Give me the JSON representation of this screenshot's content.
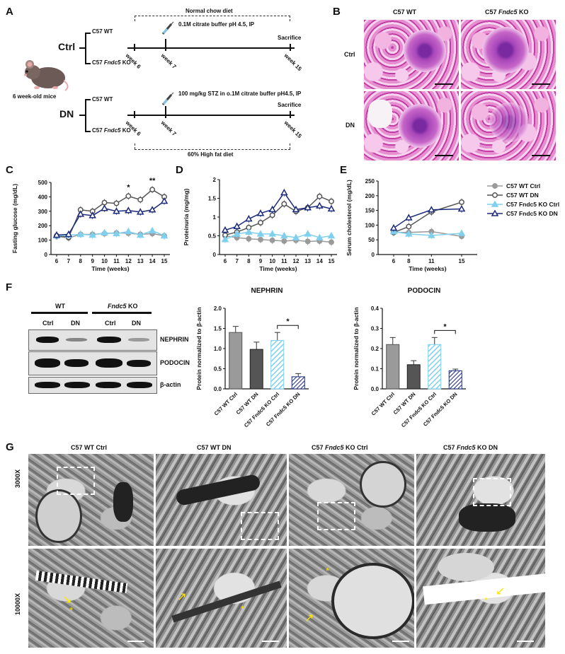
{
  "panels": {
    "A": {
      "label": "A",
      "mouse_label": "6 week-old mice",
      "ctrl": {
        "group": "Ctrl",
        "strain_wt": "C57 WT",
        "strain_ko_prefix": "C57 ",
        "strain_ko_gene": "Fndc5",
        "strain_ko_suffix": " KO",
        "diet": "Normal chow diet",
        "injection": "0.1M citrate buffer pH 4.5, IP",
        "sacrifice": "Sacrifice",
        "week_start": "week 6",
        "week_inject": "week 7",
        "week_end": "week 15"
      },
      "dn": {
        "group": "DN",
        "strain_wt": "C57 WT",
        "strain_ko_prefix": "C57 ",
        "strain_ko_gene": "Fndc5",
        "strain_ko_suffix": " KO",
        "diet": "60% High fat diet",
        "injection": "100 mg/kg STZ in o.1M citrate buffer pH4.5, IP",
        "sacrifice": "Sacrifice",
        "week_start": "week 6",
        "week_inject": "week 7",
        "week_end": "week 15"
      }
    },
    "B": {
      "label": "B",
      "col1": "C57 WT",
      "col2_prefix": "C57 ",
      "col2_gene": "Fndc5",
      "col2_suffix": " KO",
      "row1": "Ctrl",
      "row2": "DN"
    },
    "C": {
      "label": "C"
    },
    "D": {
      "label": "D"
    },
    "E": {
      "label": "E"
    },
    "F": {
      "label": "F",
      "wb_wt": "WT",
      "wb_ko_gene": "Fndc5",
      "wb_ko_suffix": " KO",
      "lanes": [
        "Ctrl",
        "DN",
        "Ctrl",
        "DN"
      ],
      "rows": [
        "NEPHRIN",
        "PODOCIN",
        "β-actin"
      ]
    },
    "G": {
      "label": "G",
      "cols": [
        {
          "prefix": "C57 WT Ctrl",
          "gene": "",
          "suffix": ""
        },
        {
          "prefix": "C57 WT DN",
          "gene": "",
          "suffix": ""
        },
        {
          "prefix": "C57 ",
          "gene": "Fndc5",
          "suffix": " KO Ctrl"
        },
        {
          "prefix": "C57 ",
          "gene": "Fndc5",
          "suffix": " KO DN"
        }
      ],
      "row1": "3000X",
      "row2": "10000X"
    }
  },
  "legend": [
    "C57 WT Ctrl",
    "C57 WT DN",
    "C57 Fndc5 KO Ctrl",
    "C57 Fndc5 KO DN"
  ],
  "colors": {
    "wt_ctrl": "#9a9a9a",
    "wt_dn": "#555555",
    "ko_ctrl": "#7fd0ee",
    "ko_dn": "#1b2a7a"
  },
  "chart_data": [
    {
      "type": "line",
      "panel": "C",
      "ylabel": "Fasting glucose (mg/dL)",
      "xlabel": "Time (weeks)",
      "x": [
        6,
        7,
        8,
        9,
        10,
        11,
        12,
        13,
        14,
        15
      ],
      "ylim": [
        0,
        500
      ],
      "yticks": [
        0,
        100,
        200,
        300,
        400,
        500
      ],
      "series": [
        {
          "name": "C57 WT Ctrl",
          "values": [
            125,
            115,
            140,
            140,
            145,
            150,
            148,
            140,
            145,
            130
          ]
        },
        {
          "name": "C57 WT DN",
          "values": [
            130,
            120,
            310,
            300,
            360,
            355,
            405,
            380,
            450,
            400
          ]
        },
        {
          "name": "C57 Fndc5 KO Ctrl",
          "values": [
            130,
            135,
            140,
            135,
            150,
            145,
            160,
            135,
            165,
            130
          ]
        },
        {
          "name": "C57 Fndc5 KO DN",
          "values": [
            135,
            140,
            280,
            270,
            320,
            300,
            305,
            295,
            310,
            370
          ]
        }
      ],
      "annotations": [
        {
          "x": 12,
          "text": "*"
        },
        {
          "x": 14,
          "text": "**"
        }
      ]
    },
    {
      "type": "line",
      "panel": "D",
      "ylabel": "Proteinuria   (mg/mg)",
      "xlabel": "Time (weeks)",
      "x": [
        6,
        7,
        8,
        9,
        10,
        11,
        12,
        13,
        14,
        15
      ],
      "ylim": [
        0,
        2.0
      ],
      "yticks": [
        0,
        0.5,
        1.0,
        1.5,
        2.0
      ],
      "series": [
        {
          "name": "C57 WT Ctrl",
          "values": [
            0.5,
            0.45,
            0.42,
            0.4,
            0.38,
            0.36,
            0.38,
            0.35,
            0.36,
            0.33
          ]
        },
        {
          "name": "C57 WT DN",
          "values": [
            0.52,
            0.6,
            0.72,
            0.85,
            1.05,
            1.35,
            1.15,
            1.25,
            1.55,
            1.42
          ]
        },
        {
          "name": "C57 Fndc5 KO Ctrl",
          "values": [
            0.4,
            0.55,
            0.6,
            0.55,
            0.55,
            0.5,
            0.45,
            0.55,
            0.45,
            0.5
          ]
        },
        {
          "name": "C57 Fndc5 KO DN",
          "values": [
            0.65,
            0.75,
            0.95,
            1.1,
            1.2,
            1.65,
            1.2,
            1.25,
            1.3,
            1.22
          ]
        }
      ]
    },
    {
      "type": "line",
      "panel": "E",
      "ylabel": "Serum cholesterol (mg/dL)",
      "xlabel": "Time (weeks)",
      "x": [
        6,
        8,
        11,
        15
      ],
      "ylim": [
        0,
        250
      ],
      "yticks": [
        0,
        50,
        100,
        150,
        200,
        250
      ],
      "series": [
        {
          "name": "C57 WT Ctrl",
          "values": [
            75,
            75,
            78,
            62
          ]
        },
        {
          "name": "C57 WT DN",
          "values": [
            75,
            95,
            145,
            178
          ]
        },
        {
          "name": "C57 Fndc5 KO Ctrl",
          "values": [
            78,
            70,
            65,
            72
          ]
        },
        {
          "name": "C57 Fndc5 KO DN",
          "values": [
            90,
            125,
            152,
            155
          ]
        }
      ]
    },
    {
      "type": "bar",
      "panel": "F-NEPHRIN",
      "title": "NEPHRIN",
      "ylabel": "Protein normalized to β-actin",
      "categories": [
        "C57 WT Ctrl",
        "C57 WT DN",
        "C57 Fndc5 KO Ctrl",
        "C57 Fndc5 KO DN"
      ],
      "values": [
        1.4,
        0.98,
        1.2,
        0.3
      ],
      "errors": [
        0.15,
        0.18,
        0.2,
        0.08
      ],
      "ylim": [
        0,
        2.0
      ],
      "yticks": [
        0.0,
        0.5,
        1.0,
        1.5,
        2.0
      ],
      "significance": [
        {
          "between": [
            2,
            3
          ],
          "text": "*"
        }
      ]
    },
    {
      "type": "bar",
      "panel": "F-PODOCIN",
      "title": "PODOCIN",
      "ylabel": "Protein normalized to β-actin",
      "categories": [
        "C57 WT Ctrl",
        "C57 WT DN",
        "C57 Fndc5 KO Ctrl",
        "C57 Fndc5 KO DN"
      ],
      "values": [
        0.22,
        0.12,
        0.22,
        0.09
      ],
      "errors": [
        0.035,
        0.02,
        0.035,
        0.008
      ],
      "ylim": [
        0,
        0.4
      ],
      "yticks": [
        0.0,
        0.1,
        0.2,
        0.3,
        0.4
      ],
      "significance": [
        {
          "between": [
            2,
            3
          ],
          "text": "*"
        }
      ]
    }
  ]
}
